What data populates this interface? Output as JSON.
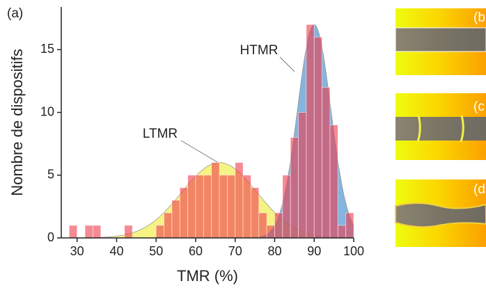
{
  "chart_data": {
    "type": "histogram",
    "panel_label": "(a)",
    "xlabel": "TMR (%)",
    "ylabel": "Nombre de dispositifs",
    "bins": [
      28,
      30,
      32,
      34,
      36,
      38,
      40,
      42,
      44,
      46,
      48,
      50,
      52,
      54,
      56,
      58,
      60,
      62,
      64,
      66,
      68,
      70,
      72,
      74,
      76,
      78,
      80,
      82,
      84,
      86,
      88,
      90,
      92,
      94,
      96,
      98,
      100
    ],
    "counts": [
      1,
      0,
      1,
      1,
      0,
      0,
      0,
      1,
      0,
      0,
      0,
      1,
      2,
      3,
      4,
      5,
      5,
      5,
      6,
      5,
      5,
      6,
      5,
      4,
      2,
      1,
      2,
      5,
      8,
      10,
      17,
      16,
      12,
      9,
      1,
      2
    ],
    "color": "#f03c4c",
    "fits": [
      {
        "name": "LTMR",
        "center": 66,
        "amplitude": 6,
        "sigma": 9.5,
        "color": "#f2ee50"
      },
      {
        "name": "HTMR",
        "center": 90,
        "amplitude": 17,
        "sigma": 4.2,
        "color": "#4f95d2"
      }
    ],
    "xlim": [
      26,
      100
    ],
    "ylim": [
      0,
      18.4
    ],
    "xticks": [
      30,
      40,
      50,
      60,
      70,
      80,
      90,
      100
    ],
    "yticks": [
      0,
      5,
      10,
      15
    ]
  },
  "side_panels": [
    "(b",
    "(c",
    "(d"
  ]
}
